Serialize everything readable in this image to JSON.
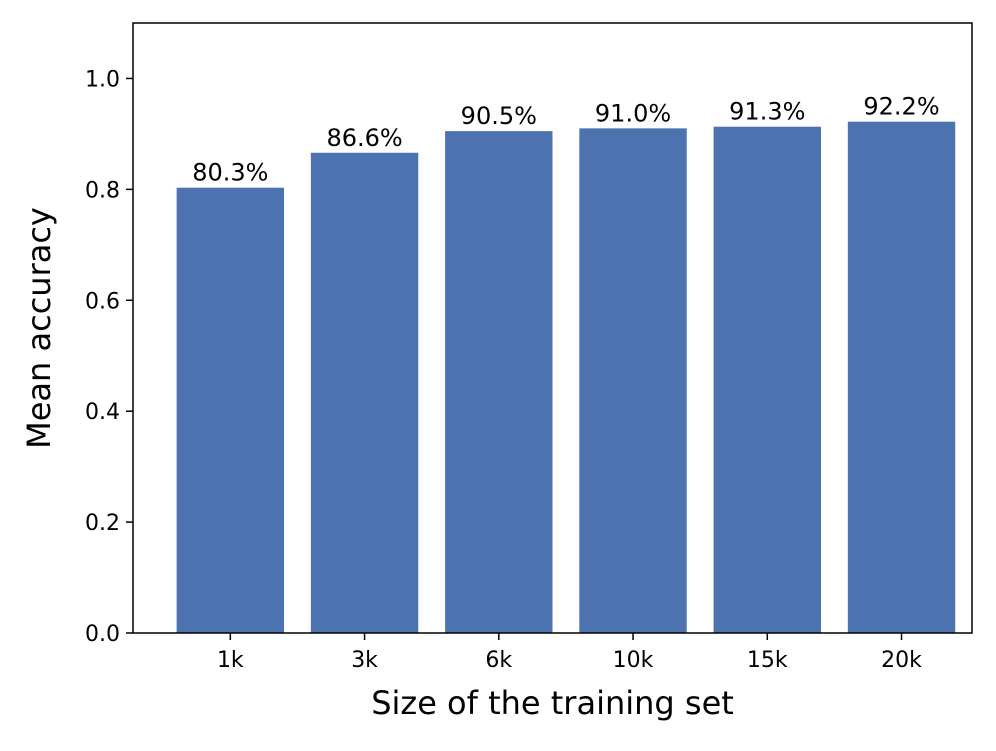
{
  "chart_data": {
    "type": "bar",
    "title": "",
    "xlabel": "Size of the training set",
    "ylabel": "Mean accuracy",
    "categories": [
      "1k",
      "3k",
      "6k",
      "10k",
      "15k",
      "20k"
    ],
    "values": [
      0.803,
      0.866,
      0.905,
      0.91,
      0.913,
      0.922
    ],
    "data_labels": [
      "80.3%",
      "86.6%",
      "90.5%",
      "91.0%",
      "91.3%",
      "92.2%"
    ],
    "ylim": [
      0,
      1.1
    ],
    "yticks": [
      0.0,
      0.2,
      0.4,
      0.6,
      0.8,
      1.0
    ],
    "ytick_labels": [
      "0.0",
      "0.2",
      "0.4",
      "0.6",
      "0.8",
      "1.0"
    ],
    "bar_color": "#4c72b0",
    "grid": false,
    "legend": "none"
  }
}
